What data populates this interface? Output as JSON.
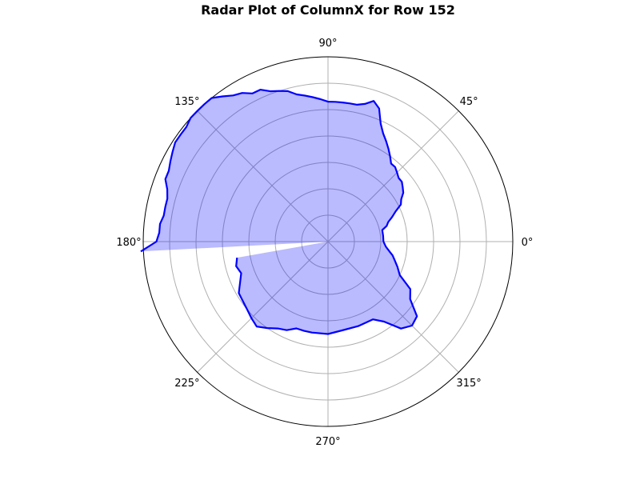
{
  "chart_data": {
    "type": "radar",
    "title": "Radar Plot of ColumnX for Row 152",
    "angular_ticks_deg": [
      0,
      45,
      90,
      135,
      180,
      225,
      270,
      315
    ],
    "angular_tick_labels": [
      "0°",
      "45°",
      "90°",
      "135°",
      "180°",
      "225°",
      "270°",
      "315°"
    ],
    "radial_range": [
      0,
      7
    ],
    "radial_gridlines": [
      1,
      2,
      3,
      4,
      5,
      6
    ],
    "radial_tick_labels_shown": false,
    "grid": true,
    "line_color": "#0000ff",
    "fill_color": "#0000ff",
    "fill_alpha": 0.27,
    "series": [
      {
        "segments": [
          [
            [
              0,
              2.1
            ],
            [
              6,
              2.1
            ],
            [
              12,
              2.1
            ],
            [
              15,
              2.3
            ],
            [
              18,
              2.4
            ],
            [
              21,
              2.6
            ],
            [
              24,
              2.8
            ],
            [
              27,
              3.1
            ],
            [
              30,
              3.2
            ],
            [
              33,
              3.4
            ],
            [
              36,
              3.5
            ],
            [
              39,
              3.6
            ],
            [
              42,
              3.6
            ],
            [
              45,
              3.7
            ],
            [
              48,
              3.8
            ],
            [
              51,
              3.8
            ],
            [
              54,
              4.0
            ],
            [
              57,
              4.2
            ],
            [
              60,
              4.4
            ],
            [
              63,
              4.6
            ],
            [
              66,
              4.9
            ],
            [
              69,
              5.4
            ],
            [
              72,
              5.6
            ],
            [
              75,
              5.4
            ],
            [
              78,
              5.3
            ],
            [
              81,
              5.3
            ],
            [
              84,
              5.3
            ],
            [
              87,
              5.3
            ],
            [
              90,
              5.3
            ],
            [
              93,
              5.4
            ],
            [
              96,
              5.5
            ],
            [
              99,
              5.6
            ],
            [
              102,
              5.7
            ],
            [
              105,
              5.9
            ],
            [
              108,
              6.0
            ],
            [
              111,
              6.1
            ],
            [
              114,
              6.3
            ],
            [
              117,
              6.3
            ],
            [
              120,
              6.5
            ],
            [
              123,
              6.6
            ],
            [
              126,
              6.8
            ],
            [
              129,
              7.0
            ],
            [
              132,
              7.0
            ],
            [
              135,
              7.0
            ],
            [
              138,
              7.0
            ],
            [
              141,
              6.9
            ],
            [
              144,
              6.9
            ],
            [
              147,
              6.9
            ],
            [
              150,
              6.8
            ],
            [
              153,
              6.7
            ],
            [
              156,
              6.6
            ],
            [
              159,
              6.6
            ],
            [
              162,
              6.4
            ],
            [
              165,
              6.3
            ],
            [
              168,
              6.3
            ],
            [
              171,
              6.3
            ],
            [
              174,
              6.4
            ],
            [
              177,
              6.4
            ],
            [
              180,
              6.5
            ],
            [
              183,
              7.1
            ]
          ],
          [
            [
              190,
              3.5
            ],
            [
              195,
              3.6
            ],
            [
              200,
              3.5
            ],
            [
              210,
              3.9
            ],
            [
              220,
              4.0
            ],
            [
              225,
              4.1
            ],
            [
              230,
              4.2
            ],
            [
              235,
              4.0
            ],
            [
              240,
              3.8
            ],
            [
              245,
              3.7
            ],
            [
              250,
              3.5
            ],
            [
              255,
              3.5
            ],
            [
              260,
              3.5
            ],
            [
              270,
              3.5
            ],
            [
              280,
              3.4
            ],
            [
              290,
              3.4
            ],
            [
              300,
              3.4
            ],
            [
              305,
              3.7
            ],
            [
              310,
              4.3
            ],
            [
              315,
              4.5
            ],
            [
              320,
              4.4
            ],
            [
              325,
              3.8
            ],
            [
              330,
              3.6
            ],
            [
              335,
              3.0
            ],
            [
              340,
              2.8
            ],
            [
              345,
              2.6
            ],
            [
              348,
              2.5
            ],
            [
              350,
              2.4
            ],
            [
              355,
              2.2
            ],
            [
              360,
              2.1
            ]
          ]
        ]
      }
    ]
  }
}
